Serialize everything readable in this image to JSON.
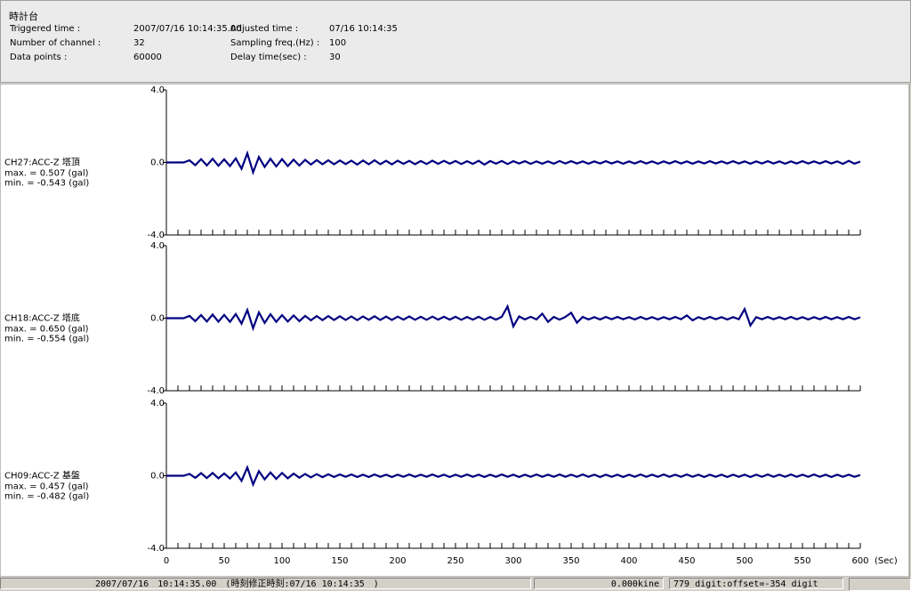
{
  "header": {
    "title": "時計台",
    "left_fields": [
      {
        "label": "Triggered time :",
        "value": "2007/07/16 10:14:35.00"
      },
      {
        "label": "Number of channel :",
        "value": "32"
      },
      {
        "label": "Data points :",
        "value": "60000"
      }
    ],
    "right_fields": [
      {
        "label": "Adjusted time :",
        "value": "07/16 10:14:35"
      },
      {
        "label": "Sampling freq.(Hz) :",
        "value": "100"
      },
      {
        "label": "Delay time(sec) :",
        "value": "30"
      }
    ]
  },
  "chart_data": [
    {
      "type": "line",
      "annotations": [
        "max. = 0.507 (gal)",
        "min. = -0.543 (gal)"
      ],
      "x": [
        0,
        5,
        10,
        15,
        20,
        25,
        30,
        35,
        40,
        45,
        50,
        55,
        60,
        65,
        70,
        75,
        80,
        85,
        90,
        95,
        100,
        105,
        110,
        115,
        120,
        125,
        130,
        135,
        140,
        145,
        150,
        155,
        160,
        165,
        170,
        175,
        180,
        185,
        190,
        195,
        200,
        205,
        210,
        215,
        220,
        225,
        230,
        235,
        240,
        245,
        250,
        255,
        260,
        265,
        270,
        275,
        280,
        285,
        290,
        295,
        300,
        305,
        310,
        315,
        320,
        325,
        330,
        335,
        340,
        345,
        350,
        355,
        360,
        365,
        370,
        375,
        380,
        385,
        390,
        395,
        400,
        405,
        410,
        415,
        420,
        425,
        430,
        435,
        440,
        445,
        450,
        455,
        460,
        465,
        470,
        475,
        480,
        485,
        490,
        495,
        500,
        505,
        510,
        515,
        520,
        525,
        530,
        535,
        540,
        545,
        550,
        555,
        560,
        565,
        570,
        575,
        580,
        585,
        590,
        595,
        600
      ],
      "series": [
        {
          "name": "CH27:ACC-Z 塔頂",
          "color": "#000080",
          "values": [
            0,
            0,
            0,
            0,
            0.12,
            -0.15,
            0.18,
            -0.16,
            0.2,
            -0.18,
            0.17,
            -0.2,
            0.22,
            -0.35,
            0.507,
            -0.543,
            0.3,
            -0.25,
            0.2,
            -0.22,
            0.18,
            -0.2,
            0.15,
            -0.17,
            0.14,
            -0.12,
            0.13,
            -0.1,
            0.12,
            -0.1,
            0.11,
            -0.09,
            0.1,
            -0.12,
            0.11,
            -0.1,
            0.12,
            -0.1,
            0.09,
            -0.11,
            0.1,
            -0.08,
            0.09,
            -0.1,
            0.08,
            -0.09,
            0.1,
            -0.08,
            0.09,
            -0.07,
            0.08,
            -0.09,
            0.07,
            -0.08,
            0.09,
            -0.12,
            0.08,
            -0.07,
            0.08,
            -0.09,
            0.07,
            -0.06,
            0.07,
            -0.08,
            0.06,
            -0.07,
            0.06,
            -0.07,
            0.08,
            -0.06,
            0.07,
            -0.06,
            0.06,
            -0.07,
            0.06,
            -0.06,
            0.07,
            -0.06,
            0.06,
            -0.07,
            0.06,
            -0.06,
            0.07,
            -0.06,
            0.06,
            -0.07,
            0.06,
            -0.06,
            0.07,
            -0.06,
            0.06,
            -0.07,
            0.06,
            -0.06,
            0.07,
            -0.06,
            0.06,
            -0.06,
            0.07,
            -0.06,
            0.06,
            -0.07,
            0.06,
            -0.06,
            0.07,
            -0.06,
            0.06,
            -0.07,
            0.06,
            -0.06,
            0.07,
            -0.06,
            0.06,
            -0.06,
            0.07,
            -0.06,
            0.06,
            -0.08,
            0.09,
            -0.07,
            0.05
          ]
        }
      ],
      "xlim": [
        0,
        600
      ],
      "ylim": [
        -4,
        4
      ],
      "yticks": [
        {
          "value": -4,
          "label": "-4.0"
        },
        {
          "value": 0,
          "label": "0.0"
        },
        {
          "value": 4,
          "label": "4.0"
        }
      ]
    },
    {
      "type": "line",
      "annotations": [
        "max. = 0.650 (gal)",
        "min. = -0.554 (gal)"
      ],
      "x": [
        0,
        5,
        10,
        15,
        20,
        25,
        30,
        35,
        40,
        45,
        50,
        55,
        60,
        65,
        70,
        75,
        80,
        85,
        90,
        95,
        100,
        105,
        110,
        115,
        120,
        125,
        130,
        135,
        140,
        145,
        150,
        155,
        160,
        165,
        170,
        175,
        180,
        185,
        190,
        195,
        200,
        205,
        210,
        215,
        220,
        225,
        230,
        235,
        240,
        245,
        250,
        255,
        260,
        265,
        270,
        275,
        280,
        285,
        290,
        295,
        300,
        305,
        310,
        315,
        320,
        325,
        330,
        335,
        340,
        345,
        350,
        355,
        360,
        365,
        370,
        375,
        380,
        385,
        390,
        395,
        400,
        405,
        410,
        415,
        420,
        425,
        430,
        435,
        440,
        445,
        450,
        455,
        460,
        465,
        470,
        475,
        480,
        485,
        490,
        495,
        500,
        505,
        510,
        515,
        520,
        525,
        530,
        535,
        540,
        545,
        550,
        555,
        560,
        565,
        570,
        575,
        580,
        585,
        590,
        595,
        600
      ],
      "series": [
        {
          "name": "CH18:ACC-Z 塔底",
          "color": "#000080",
          "values": [
            0,
            0,
            0,
            0,
            0.13,
            -0.16,
            0.17,
            -0.18,
            0.2,
            -0.19,
            0.18,
            -0.2,
            0.23,
            -0.3,
            0.45,
            -0.554,
            0.32,
            -0.26,
            0.22,
            -0.2,
            0.17,
            -0.18,
            0.15,
            -0.16,
            0.13,
            -0.12,
            0.12,
            -0.11,
            0.12,
            -0.1,
            0.11,
            -0.1,
            0.1,
            -0.11,
            0.1,
            -0.09,
            0.11,
            -0.1,
            0.09,
            -0.1,
            0.09,
            -0.08,
            0.1,
            -0.09,
            0.08,
            -0.09,
            0.09,
            -0.08,
            0.08,
            -0.08,
            0.08,
            -0.09,
            0.07,
            -0.08,
            0.08,
            -0.09,
            0.07,
            -0.08,
            0.08,
            0.65,
            -0.45,
            0.1,
            -0.07,
            0.08,
            -0.07,
            0.25,
            -0.2,
            0.07,
            -0.08,
            0.07,
            0.3,
            -0.25,
            0.07,
            -0.07,
            0.06,
            -0.07,
            0.07,
            -0.06,
            0.07,
            -0.06,
            0.06,
            -0.07,
            0.07,
            -0.06,
            0.06,
            -0.07,
            0.06,
            -0.06,
            0.07,
            -0.06,
            0.15,
            -0.12,
            0.06,
            -0.06,
            0.07,
            -0.06,
            0.06,
            -0.07,
            0.06,
            -0.06,
            0.5,
            -0.4,
            0.06,
            -0.06,
            0.07,
            -0.06,
            0.06,
            -0.06,
            0.07,
            -0.06,
            0.06,
            -0.07,
            0.06,
            -0.06,
            0.07,
            -0.06,
            0.06,
            -0.06,
            0.07,
            -0.06,
            0.05
          ]
        }
      ],
      "xlim": [
        0,
        600
      ],
      "ylim": [
        -4,
        4
      ],
      "yticks": [
        {
          "value": -4,
          "label": "-4.0"
        },
        {
          "value": 0,
          "label": "0.0"
        },
        {
          "value": 4,
          "label": "4.0"
        }
      ]
    },
    {
      "type": "line",
      "annotations": [
        "max. = 0.457 (gal)",
        "min. = -0.482 (gal)"
      ],
      "x": [
        0,
        5,
        10,
        15,
        20,
        25,
        30,
        35,
        40,
        45,
        50,
        55,
        60,
        65,
        70,
        75,
        80,
        85,
        90,
        95,
        100,
        105,
        110,
        115,
        120,
        125,
        130,
        135,
        140,
        145,
        150,
        155,
        160,
        165,
        170,
        175,
        180,
        185,
        190,
        195,
        200,
        205,
        210,
        215,
        220,
        225,
        230,
        235,
        240,
        245,
        250,
        255,
        260,
        265,
        270,
        275,
        280,
        285,
        290,
        295,
        300,
        305,
        310,
        315,
        320,
        325,
        330,
        335,
        340,
        345,
        350,
        355,
        360,
        365,
        370,
        375,
        380,
        385,
        390,
        395,
        400,
        405,
        410,
        415,
        420,
        425,
        430,
        435,
        440,
        445,
        450,
        455,
        460,
        465,
        470,
        475,
        480,
        485,
        490,
        495,
        500,
        505,
        510,
        515,
        520,
        525,
        530,
        535,
        540,
        545,
        550,
        555,
        560,
        565,
        570,
        575,
        580,
        585,
        590,
        595,
        600
      ],
      "series": [
        {
          "name": "CH09:ACC-Z 基盤",
          "color": "#000080",
          "values": [
            0,
            0,
            0,
            0,
            0.1,
            -0.12,
            0.14,
            -0.13,
            0.15,
            -0.14,
            0.13,
            -0.15,
            0.18,
            -0.28,
            0.457,
            -0.482,
            0.25,
            -0.2,
            0.18,
            -0.17,
            0.15,
            -0.14,
            0.12,
            -0.11,
            0.1,
            -0.09,
            0.09,
            -0.08,
            0.08,
            -0.07,
            0.07,
            -0.06,
            0.07,
            -0.07,
            0.06,
            -0.07,
            0.07,
            -0.06,
            0.06,
            -0.07,
            0.06,
            -0.06,
            0.07,
            -0.06,
            0.06,
            -0.06,
            0.07,
            -0.06,
            0.06,
            -0.07,
            0.06,
            -0.06,
            0.07,
            -0.06,
            0.06,
            -0.07,
            0.06,
            -0.06,
            0.07,
            -0.06,
            0.06,
            -0.07,
            0.06,
            -0.06,
            0.07,
            -0.06,
            0.06,
            -0.06,
            0.07,
            -0.06,
            0.06,
            -0.06,
            0.07,
            -0.06,
            0.06,
            -0.07,
            0.06,
            -0.06,
            0.06,
            -0.07,
            0.06,
            -0.06,
            0.07,
            -0.06,
            0.06,
            -0.06,
            0.07,
            -0.06,
            0.06,
            -0.06,
            0.07,
            -0.06,
            0.06,
            -0.07,
            0.06,
            -0.06,
            0.06,
            -0.07,
            0.06,
            -0.06,
            0.06,
            -0.07,
            0.06,
            -0.06,
            0.07,
            -0.06,
            0.06,
            -0.06,
            0.07,
            -0.06,
            0.06,
            -0.06,
            0.07,
            -0.06,
            0.06,
            -0.07,
            0.06,
            -0.06,
            0.06,
            -0.06,
            0.04
          ]
        }
      ],
      "xlim": [
        0,
        600
      ],
      "ylim": [
        -4,
        4
      ],
      "yticks": [
        {
          "value": -4,
          "label": "-4.0"
        },
        {
          "value": 0,
          "label": "0.0"
        },
        {
          "value": 4,
          "label": "4.0"
        }
      ],
      "xticks": [
        0,
        50,
        100,
        150,
        200,
        250,
        300,
        350,
        400,
        450,
        500,
        550,
        600
      ],
      "xlabel": "(Sec)"
    }
  ],
  "status_bar": [
    "2007/07/16　10:14:35.00　(時刻修正時刻:07/16 10:14:35　)",
    "0.000kine",
    "779 digit:offset=-354 digit"
  ]
}
